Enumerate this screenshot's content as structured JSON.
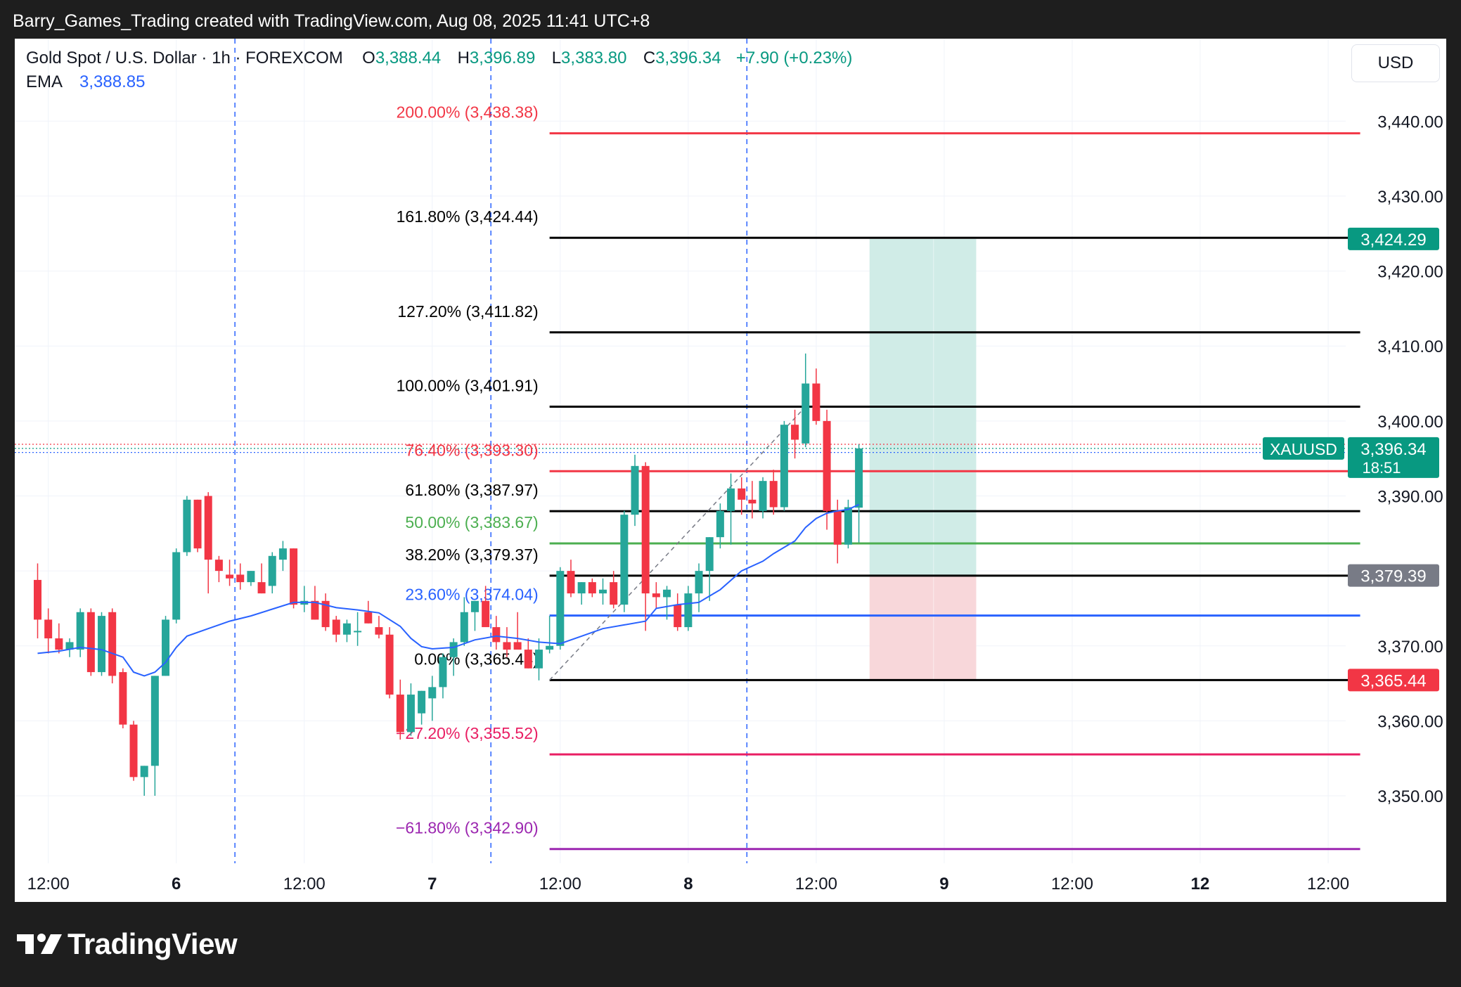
{
  "header": {
    "attribution": "Barry_Games_Trading created with TradingView.com, Aug 08, 2025 11:41 UTC+8"
  },
  "legend": {
    "symbol": "Gold Spot / U.S. Dollar · 1h · FOREXCOM",
    "o_label": "O",
    "o_value": "3,388.44",
    "h_label": "H",
    "h_value": "3,396.89",
    "l_label": "L",
    "l_value": "3,383.80",
    "c_label": "C",
    "c_value": "3,396.34",
    "change": "+7.90 (+0.23%)",
    "ema_label": "EMA",
    "ema_value": "3,388.85"
  },
  "currency_button": "USD",
  "footer": {
    "brand": "TradingView"
  },
  "colors": {
    "up": "#26a69a",
    "down": "#f23645",
    "ema": "#2962ff",
    "fib_red": "#f23645",
    "fib_green": "#4caf50",
    "fib_blue": "#2962ff",
    "fib_pink": "#e91e63",
    "fib_purple": "#9c27b0",
    "fib_black": "#000000",
    "profit_zone": "#d0ece7",
    "loss_zone": "#f8d7da",
    "price_tag": "#089981"
  },
  "chart_data": {
    "type": "candlestick",
    "ylim": [
      3341,
      3451
    ],
    "yticks": [
      {
        "v": 3440,
        "t": "3,440.00"
      },
      {
        "v": 3430,
        "t": "3,430.00"
      },
      {
        "v": 3420,
        "t": "3,420.00"
      },
      {
        "v": 3410,
        "t": "3,410.00"
      },
      {
        "v": 3400,
        "t": "3,400.00"
      },
      {
        "v": 3390,
        "t": "3,390.00"
      },
      {
        "v": 3370,
        "t": "3,370.00"
      },
      {
        "v": 3360,
        "t": "3,360.00"
      },
      {
        "v": 3350,
        "t": "3,350.00"
      }
    ],
    "xticks": [
      {
        "i": 1,
        "t": "12:00",
        "bold": false
      },
      {
        "i": 13,
        "t": "6",
        "bold": true
      },
      {
        "i": 25,
        "t": "12:00",
        "bold": false
      },
      {
        "i": 37,
        "t": "7",
        "bold": true
      },
      {
        "i": 49,
        "t": "12:00",
        "bold": false
      },
      {
        "i": 61,
        "t": "8",
        "bold": true
      },
      {
        "i": 73,
        "t": "12:00",
        "bold": false
      },
      {
        "i": 85,
        "t": "9",
        "bold": true
      },
      {
        "i": 97,
        "t": "12:00",
        "bold": false
      },
      {
        "i": 109,
        "t": "12",
        "bold": true
      },
      {
        "i": 121,
        "t": "12:00",
        "bold": false
      }
    ],
    "session_breaks": [
      18.5,
      42.5,
      66.5
    ],
    "candles": [
      [
        3378.8,
        3381.0,
        3371.0,
        3373.5
      ],
      [
        3373.5,
        3375.0,
        3369.0,
        3371.0
      ],
      [
        3371.0,
        3373.0,
        3369.0,
        3369.5
      ],
      [
        3369.5,
        3371.0,
        3368.5,
        3370.5
      ],
      [
        3369.5,
        3375.0,
        3368.5,
        3374.5
      ],
      [
        3374.5,
        3375.0,
        3366.0,
        3366.5
      ],
      [
        3366.5,
        3374.5,
        3366.0,
        3374.0
      ],
      [
        3374.5,
        3375.0,
        3365.0,
        3366.0
      ],
      [
        3366.5,
        3367.0,
        3359.0,
        3359.5
      ],
      [
        3359.5,
        3360.0,
        3352.0,
        3352.5
      ],
      [
        3352.5,
        3354.0,
        3350.0,
        3354.0
      ],
      [
        3354.0,
        3366.0,
        3350.0,
        3366.0
      ],
      [
        3366.0,
        3374.0,
        3366.0,
        3373.5
      ],
      [
        3373.5,
        3383.0,
        3373.0,
        3382.5
      ],
      [
        3382.5,
        3390.0,
        3382.0,
        3389.5
      ],
      [
        3389.5,
        3389.5,
        3382.5,
        3383.0
      ],
      [
        3390.0,
        3390.5,
        3377.0,
        3381.5
      ],
      [
        3381.5,
        3382.0,
        3378.5,
        3380.0
      ],
      [
        3379.5,
        3381.5,
        3378.0,
        3379.0
      ],
      [
        3379.5,
        3381.0,
        3377.5,
        3378.5
      ],
      [
        3378.5,
        3380.0,
        3378.0,
        3380.0
      ],
      [
        3378.5,
        3381.0,
        3377.0,
        3377.0
      ],
      [
        3378.0,
        3382.5,
        3377.0,
        3382.0
      ],
      [
        3381.5,
        3384.0,
        3380.0,
        3383.0
      ],
      [
        3383.0,
        3383.0,
        3375.0,
        3375.5
      ],
      [
        3375.5,
        3378.0,
        3374.5,
        3376.0
      ],
      [
        3376.0,
        3378.0,
        3373.5,
        3373.5
      ],
      [
        3376.0,
        3377.0,
        3372.0,
        3372.5
      ],
      [
        3373.5,
        3374.0,
        3370.5,
        3371.5
      ],
      [
        3371.5,
        3373.5,
        3370.5,
        3373.0
      ],
      [
        3372.0,
        3374.5,
        3370.0,
        3372.0
      ],
      [
        3374.5,
        3376.0,
        3373.0,
        3373.0
      ],
      [
        3372.5,
        3374.0,
        3371.0,
        3371.5
      ],
      [
        3371.5,
        3372.5,
        3363.0,
        3363.5
      ],
      [
        3363.5,
        3365.5,
        3357.5,
        3358.5
      ],
      [
        3358.5,
        3365.0,
        3358.0,
        3363.5
      ],
      [
        3361.0,
        3364.0,
        3359.5,
        3364.0
      ],
      [
        3363.0,
        3366.0,
        3360.0,
        3364.5
      ],
      [
        3364.5,
        3369.0,
        3363.0,
        3368.5
      ],
      [
        3368.5,
        3371.0,
        3366.0,
        3370.5
      ],
      [
        3370.5,
        3376.5,
        3370.0,
        3374.5
      ],
      [
        3374.5,
        3376.0,
        3372.0,
        3376.0
      ],
      [
        3376.0,
        3378.0,
        3373.0,
        3372.5
      ],
      [
        3372.5,
        3374.0,
        3369.5,
        3370.5
      ],
      [
        3370.5,
        3372.5,
        3368.5,
        3369.5
      ],
      [
        3370.5,
        3374.5,
        3370.0,
        3369.5
      ],
      [
        3369.5,
        3371.0,
        3367.0,
        3367.0
      ],
      [
        3367.0,
        3371.0,
        3365.4,
        3369.5
      ],
      [
        3369.5,
        3374.0,
        3369.0,
        3370.0
      ],
      [
        3370.0,
        3380.5,
        3369.5,
        3380.0
      ],
      [
        3380.0,
        3381.5,
        3376.5,
        3377.0
      ],
      [
        3377.0,
        3378.5,
        3375.5,
        3378.5
      ],
      [
        3378.5,
        3379.0,
        3376.5,
        3377.0
      ],
      [
        3377.0,
        3379.0,
        3375.5,
        3377.5
      ],
      [
        3378.5,
        3380.0,
        3375.0,
        3375.5
      ],
      [
        3375.5,
        3388.0,
        3374.5,
        3387.5
      ],
      [
        3387.5,
        3395.5,
        3386.0,
        3394.0
      ],
      [
        3394.0,
        3394.5,
        3372.0,
        3377.0
      ],
      [
        3377.0,
        3378.5,
        3375.0,
        3376.5
      ],
      [
        3376.5,
        3378.0,
        3373.5,
        3377.5
      ],
      [
        3375.5,
        3377.0,
        3372.0,
        3372.5
      ],
      [
        3372.5,
        3378.0,
        3372.0,
        3377.0
      ],
      [
        3377.0,
        3381.0,
        3374.5,
        3380.0
      ],
      [
        3380.0,
        3384.5,
        3376.0,
        3384.5
      ],
      [
        3384.5,
        3389.0,
        3383.0,
        3388.0
      ],
      [
        3388.0,
        3393.0,
        3383.5,
        3391.0
      ],
      [
        3391.0,
        3392.5,
        3387.5,
        3389.5
      ],
      [
        3389.5,
        3392.0,
        3387.0,
        3389.0
      ],
      [
        3388.0,
        3392.5,
        3387.0,
        3392.0
      ],
      [
        3392.0,
        3393.5,
        3387.5,
        3388.5
      ],
      [
        3388.5,
        3400.0,
        3388.0,
        3399.5
      ],
      [
        3399.5,
        3401.5,
        3395.0,
        3397.5
      ],
      [
        3397.0,
        3409.0,
        3396.5,
        3405.0
      ],
      [
        3405.0,
        3407.0,
        3399.5,
        3400.0
      ],
      [
        3400.0,
        3401.5,
        3385.5,
        3388.0
      ],
      [
        3388.0,
        3389.5,
        3381.0,
        3383.5
      ],
      [
        3383.5,
        3389.5,
        3383.0,
        3388.5
      ],
      [
        3388.44,
        3396.89,
        3383.8,
        3396.34
      ]
    ],
    "ema": [
      [
        0,
        3369.0
      ],
      [
        2,
        3369.3
      ],
      [
        4,
        3369.8
      ],
      [
        6,
        3369.5
      ],
      [
        8,
        3368.5
      ],
      [
        9,
        3366.5
      ],
      [
        10,
        3366.0
      ],
      [
        11,
        3366.5
      ],
      [
        12,
        3367.8
      ],
      [
        13,
        3369.8
      ],
      [
        14,
        3371.3
      ],
      [
        16,
        3372.3
      ],
      [
        18,
        3373.3
      ],
      [
        20,
        3374.0
      ],
      [
        22,
        3374.9
      ],
      [
        24,
        3375.8
      ],
      [
        26,
        3375.8
      ],
      [
        28,
        3375.1
      ],
      [
        30,
        3374.8
      ],
      [
        32,
        3374.4
      ],
      [
        34,
        3372.6
      ],
      [
        35,
        3371.0
      ],
      [
        36,
        3369.9
      ],
      [
        37,
        3369.6
      ],
      [
        39,
        3369.8
      ],
      [
        41,
        3370.8
      ],
      [
        43,
        3371.3
      ],
      [
        45,
        3371.0
      ],
      [
        47,
        3370.5
      ],
      [
        49,
        3370.3
      ],
      [
        51,
        3371.3
      ],
      [
        53,
        3372.3
      ],
      [
        55,
        3372.8
      ],
      [
        57,
        3373.3
      ],
      [
        58,
        3375.0
      ],
      [
        60,
        3375.5
      ],
      [
        62,
        3375.8
      ],
      [
        64,
        3377.5
      ],
      [
        66,
        3380.0
      ],
      [
        68,
        3381.3
      ],
      [
        69,
        3382.3
      ],
      [
        71,
        3384.0
      ],
      [
        72,
        3385.8
      ],
      [
        73,
        3387.0
      ],
      [
        74,
        3387.7
      ],
      [
        75,
        3388.0
      ],
      [
        76,
        3388.2
      ],
      [
        77,
        3388.85
      ]
    ],
    "fib_levels": [
      {
        "label": "200.00% (3,438.38)",
        "value": 3438.38,
        "color": "#f23645"
      },
      {
        "label": "161.80% (3,424.44)",
        "value": 3424.44,
        "color": "#000000"
      },
      {
        "label": "127.20% (3,411.82)",
        "value": 3411.82,
        "color": "#000000"
      },
      {
        "label": "100.00% (3,401.91)",
        "value": 3401.91,
        "color": "#000000"
      },
      {
        "label": "76.40% (3,393.30)",
        "value": 3393.3,
        "color": "#f23645"
      },
      {
        "label": "61.80% (3,387.97)",
        "value": 3387.97,
        "color": "#000000"
      },
      {
        "label": "50.00% (3,383.67)",
        "value": 3383.67,
        "color": "#4caf50"
      },
      {
        "label": "38.20% (3,379.37)",
        "value": 3379.37,
        "color": "#000000"
      },
      {
        "label": "23.60% (3,374.04)",
        "value": 3374.04,
        "color": "#2962ff"
      },
      {
        "label": "0.00% (3,365.44)",
        "value": 3365.44,
        "color": "#000000"
      },
      {
        "label": "−27.20% (3,355.52)",
        "value": 3355.52,
        "color": "#e91e63"
      },
      {
        "label": "−61.80% (3,342.90)",
        "value": 3342.9,
        "color": "#9c27b0"
      }
    ],
    "fib_anchor": {
      "from_i": 48,
      "from_v": 3365.44,
      "to_i": 72,
      "to_v": 3401.91
    },
    "fib_span": {
      "from_i": 48,
      "to_i": 124
    },
    "position": {
      "from_i": 78,
      "to_i": 88,
      "target": 3424.29,
      "entry": 3379.39,
      "stop": 3365.44
    },
    "price_tags": [
      {
        "value": 3424.29,
        "text": "3,424.29",
        "color": "#089981"
      },
      {
        "value": 3379.39,
        "text": "3,379.39",
        "color": "#787b86"
      },
      {
        "value": 3365.44,
        "text": "3,365.44",
        "color": "#f23645"
      }
    ],
    "current": {
      "symbol": "XAUUSD",
      "price": "3,396.34",
      "countdown": "18:51",
      "value": 3396.34
    },
    "ref_lines": [
      3396.89,
      3396.34,
      3395.8
    ]
  }
}
